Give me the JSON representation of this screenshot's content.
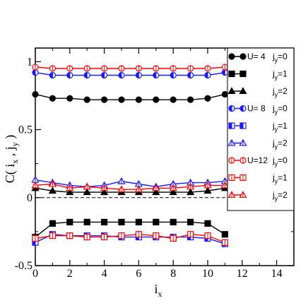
{
  "chart_data": {
    "type": "line",
    "title": "",
    "xlabel": "i",
    "xlabel_sub": "x",
    "ylabel": "C( i",
    "ylabel_sub1": "x",
    "ylabel_mid": " , j",
    "ylabel_sub2": "y",
    "ylabel_end": " )",
    "xlim": [
      0,
      15
    ],
    "ylim": [
      -0.5,
      1.1
    ],
    "xticks": [
      0,
      2,
      4,
      6,
      8,
      10,
      12,
      14
    ],
    "yticks": [
      -0.5,
      0,
      0.5,
      1
    ],
    "ytick_labels": [
      "-0.5",
      "0",
      "0.5",
      "1"
    ],
    "grid": false,
    "reference_line": {
      "y": 0,
      "style": "dashed"
    },
    "legend_placement": "right",
    "x": [
      0,
      1,
      2,
      3,
      4,
      5,
      6,
      7,
      8,
      9,
      10,
      11
    ],
    "series": [
      {
        "group": "U= 4",
        "jy": "j",
        "jy_sub": "y",
        "jy_val": "=0",
        "color": "#000000",
        "marker": "circle",
        "fill": "filled",
        "values": [
          0.76,
          0.73,
          0.73,
          0.72,
          0.72,
          0.72,
          0.72,
          0.72,
          0.72,
          0.72,
          0.73,
          0.76
        ]
      },
      {
        "group": "",
        "jy": "j",
        "jy_sub": "y",
        "jy_val": "=1",
        "color": "#000000",
        "marker": "square",
        "fill": "filled",
        "values": [
          -0.29,
          -0.19,
          -0.18,
          -0.18,
          -0.18,
          -0.18,
          -0.18,
          -0.18,
          -0.18,
          -0.18,
          -0.19,
          -0.27
        ]
      },
      {
        "group": "",
        "jy": "j",
        "jy_sub": "y",
        "jy_val": "=2",
        "color": "#000000",
        "marker": "triangle",
        "fill": "filled",
        "values": [
          0.07,
          0.05,
          0.04,
          0.04,
          0.04,
          0.04,
          0.04,
          0.04,
          0.04,
          0.04,
          0.05,
          0.07
        ]
      },
      {
        "group": "U= 8",
        "jy": "j",
        "jy_sub": "y",
        "jy_val": "=0",
        "color": "#1a1aff",
        "marker": "circle",
        "fill": "half",
        "values": [
          0.92,
          0.9,
          0.9,
          0.9,
          0.9,
          0.9,
          0.9,
          0.9,
          0.9,
          0.9,
          0.9,
          0.92
        ]
      },
      {
        "group": "",
        "jy": "j",
        "jy_sub": "y",
        "jy_val": "=1",
        "color": "#1a1aff",
        "marker": "square",
        "fill": "half",
        "values": [
          -0.33,
          -0.27,
          -0.28,
          -0.28,
          -0.28,
          -0.29,
          -0.29,
          -0.29,
          -0.29,
          -0.29,
          -0.3,
          -0.34
        ]
      },
      {
        "group": "",
        "jy": "j",
        "jy_sub": "y",
        "jy_val": "=2",
        "color": "#1a1aff",
        "marker": "triangle",
        "fill": "open",
        "values": [
          0.13,
          0.11,
          0.09,
          0.08,
          0.09,
          0.12,
          0.1,
          0.08,
          0.1,
          0.11,
          0.11,
          0.12
        ]
      },
      {
        "group": "U=12",
        "jy": "j",
        "jy_sub": "y",
        "jy_val": "=0",
        "color": "#ff0000",
        "marker": "circle",
        "fill": "open",
        "values": [
          0.96,
          0.95,
          0.95,
          0.95,
          0.95,
          0.95,
          0.95,
          0.95,
          0.95,
          0.95,
          0.95,
          0.96
        ]
      },
      {
        "group": "",
        "jy": "j",
        "jy_sub": "y",
        "jy_val": "=1",
        "color": "#ff0000",
        "marker": "square",
        "fill": "open",
        "values": [
          -0.3,
          -0.28,
          -0.28,
          -0.29,
          -0.29,
          -0.28,
          -0.27,
          -0.28,
          -0.3,
          -0.27,
          -0.28,
          -0.33
        ]
      },
      {
        "group": "",
        "jy": "j",
        "jy_sub": "y",
        "jy_val": "=2",
        "color": "#ff0000",
        "marker": "triangle",
        "fill": "open",
        "values": [
          0.09,
          0.1,
          0.07,
          0.08,
          0.07,
          0.06,
          0.06,
          0.07,
          0.07,
          0.08,
          0.09,
          0.09
        ]
      }
    ]
  }
}
